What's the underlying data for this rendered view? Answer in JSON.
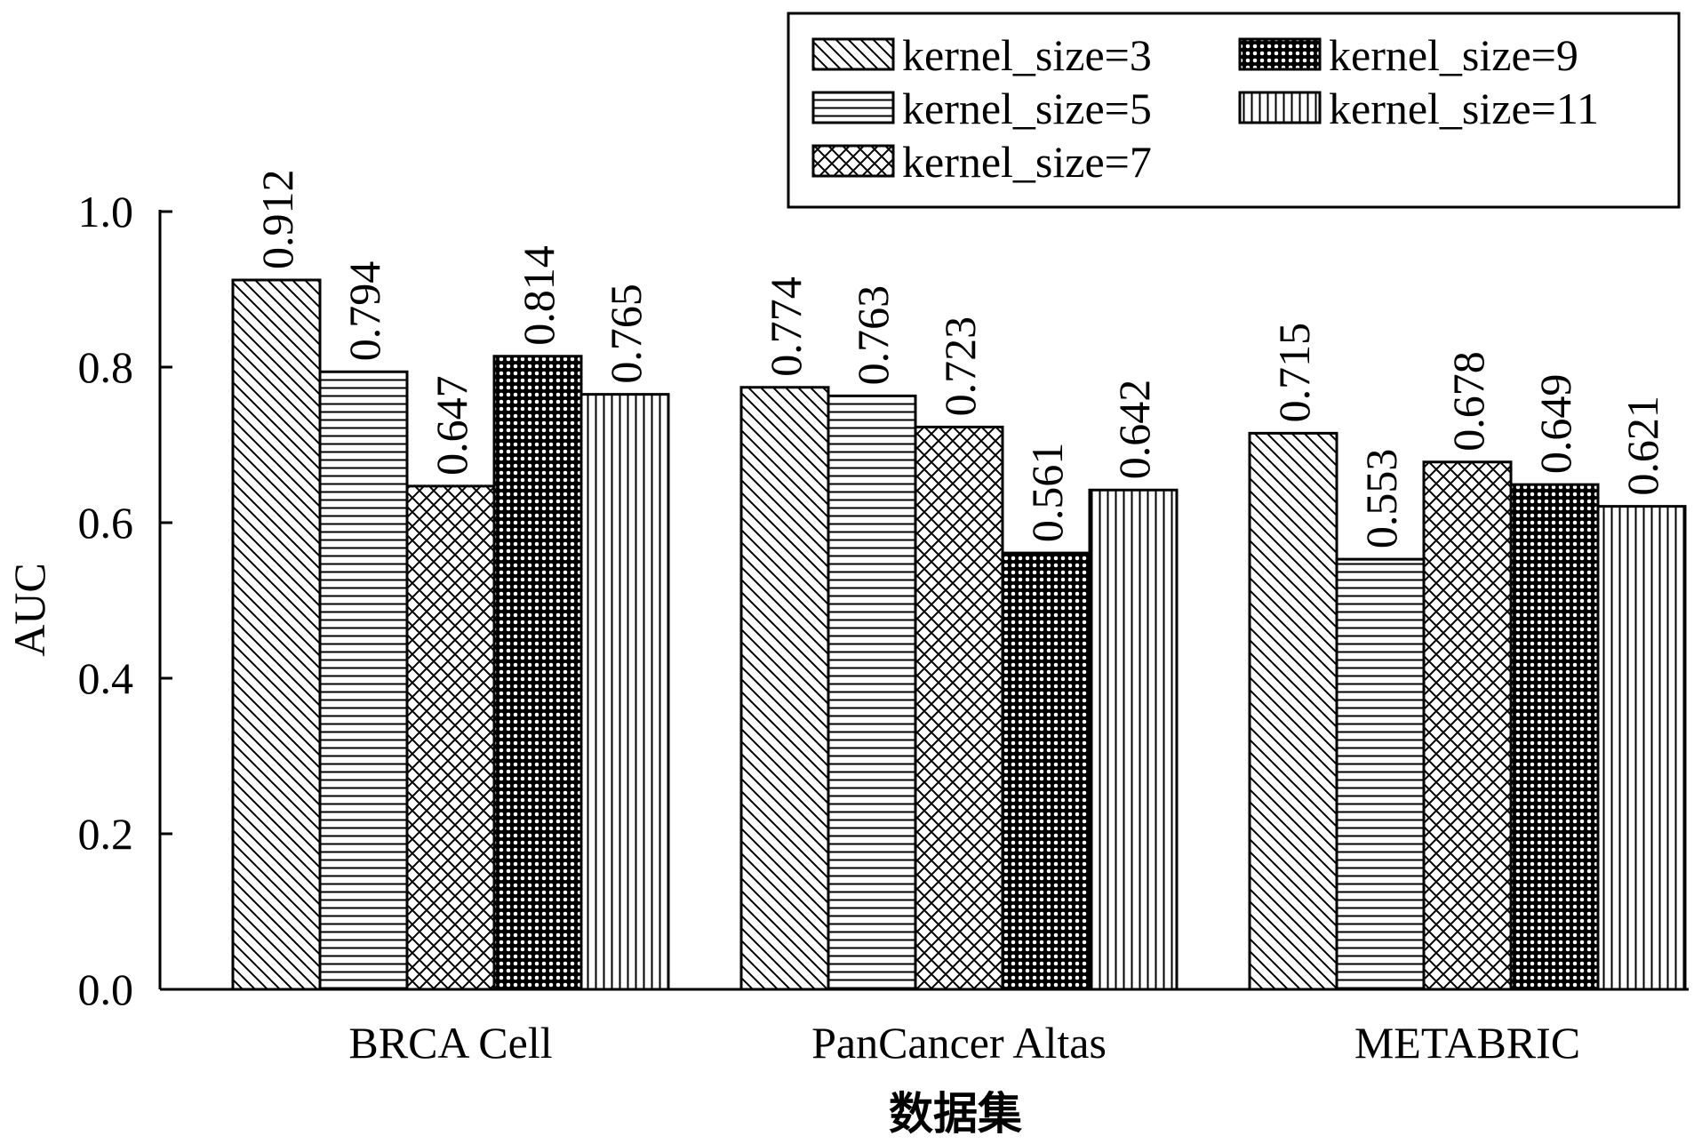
{
  "chart_data": {
    "type": "bar",
    "categories": [
      "BRCA Cell",
      "PanCancer Altas",
      "METABRIC"
    ],
    "series": [
      {
        "name": "kernel_size=3",
        "pattern": "diag",
        "values": [
          0.912,
          0.774,
          0.715
        ]
      },
      {
        "name": "kernel_size=5",
        "pattern": "hlines",
        "values": [
          0.794,
          0.763,
          0.553
        ]
      },
      {
        "name": "kernel_size=7",
        "pattern": "cross",
        "values": [
          0.647,
          0.723,
          0.678
        ]
      },
      {
        "name": "kernel_size=9",
        "pattern": "dots",
        "values": [
          0.814,
          0.561,
          0.649
        ]
      },
      {
        "name": "kernel_size=11",
        "pattern": "vlines",
        "values": [
          0.765,
          0.642,
          0.621
        ]
      }
    ],
    "data_labels": [
      [
        "0.912",
        "0.774",
        "0.715"
      ],
      [
        "0.794",
        "0.763",
        "0.553"
      ],
      [
        "0.647",
        "0.723",
        "0.678"
      ],
      [
        "0.814",
        "0.561",
        "0.649"
      ],
      [
        "0.765",
        "0.642",
        "0.621"
      ]
    ],
    "xlabel": "数据集",
    "ylabel": "AUC",
    "ylim": [
      0,
      1.0
    ],
    "yticks": [
      0.0,
      0.2,
      0.4,
      0.6,
      0.8,
      1.0
    ],
    "ytick_labels": [
      "0.0",
      "0.2",
      "0.4",
      "0.6",
      "0.8",
      "1.0"
    ],
    "grid": false,
    "legend_position": "top-right",
    "colors": {
      "bar_fill": "#ffffff",
      "stroke": "#000000"
    }
  }
}
